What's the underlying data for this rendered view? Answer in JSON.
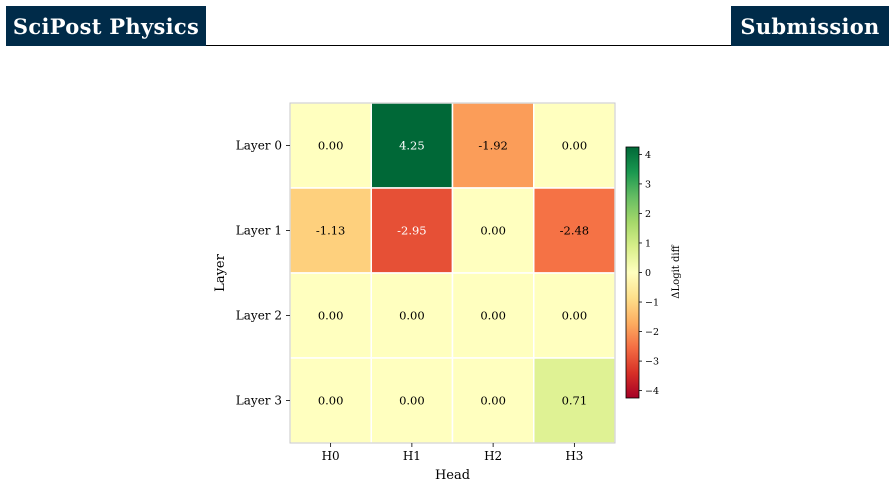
{
  "header": {
    "journal": "SciPost Physics",
    "badge": "Submission"
  },
  "chart_data": {
    "type": "heatmap",
    "title": "",
    "xlabel": "Head",
    "ylabel": "Layer",
    "x_categories": [
      "H0",
      "H1",
      "H2",
      "H3"
    ],
    "y_categories": [
      "Layer 0",
      "Layer 1",
      "Layer 2",
      "Layer 3"
    ],
    "values": [
      [
        0.0,
        4.25,
        -1.92,
        0.0
      ],
      [
        -1.13,
        -2.95,
        0.0,
        -2.48
      ],
      [
        0.0,
        0.0,
        0.0,
        0.0
      ],
      [
        0.0,
        0.0,
        0.0,
        0.71
      ]
    ],
    "value_labels": [
      [
        "0.00",
        "4.25",
        "-1.92",
        "0.00"
      ],
      [
        "-1.13",
        "-2.95",
        "0.00",
        "-2.48"
      ],
      [
        "0.00",
        "0.00",
        "0.00",
        "0.00"
      ],
      [
        "0.00",
        "0.00",
        "0.00",
        "0.71"
      ]
    ],
    "colormap": "RdYlGn",
    "colorbar": {
      "label": "ΔLogit diff",
      "range": [
        -4.25,
        4.25
      ],
      "ticks": [
        4,
        3,
        2,
        1,
        0,
        -1,
        -2,
        -3,
        -4
      ],
      "tick_labels": [
        "4",
        "3",
        "2",
        "1",
        "0",
        "−1",
        "−2",
        "−3",
        "−4"
      ]
    },
    "grid": false,
    "legend": "colorbar-right"
  }
}
